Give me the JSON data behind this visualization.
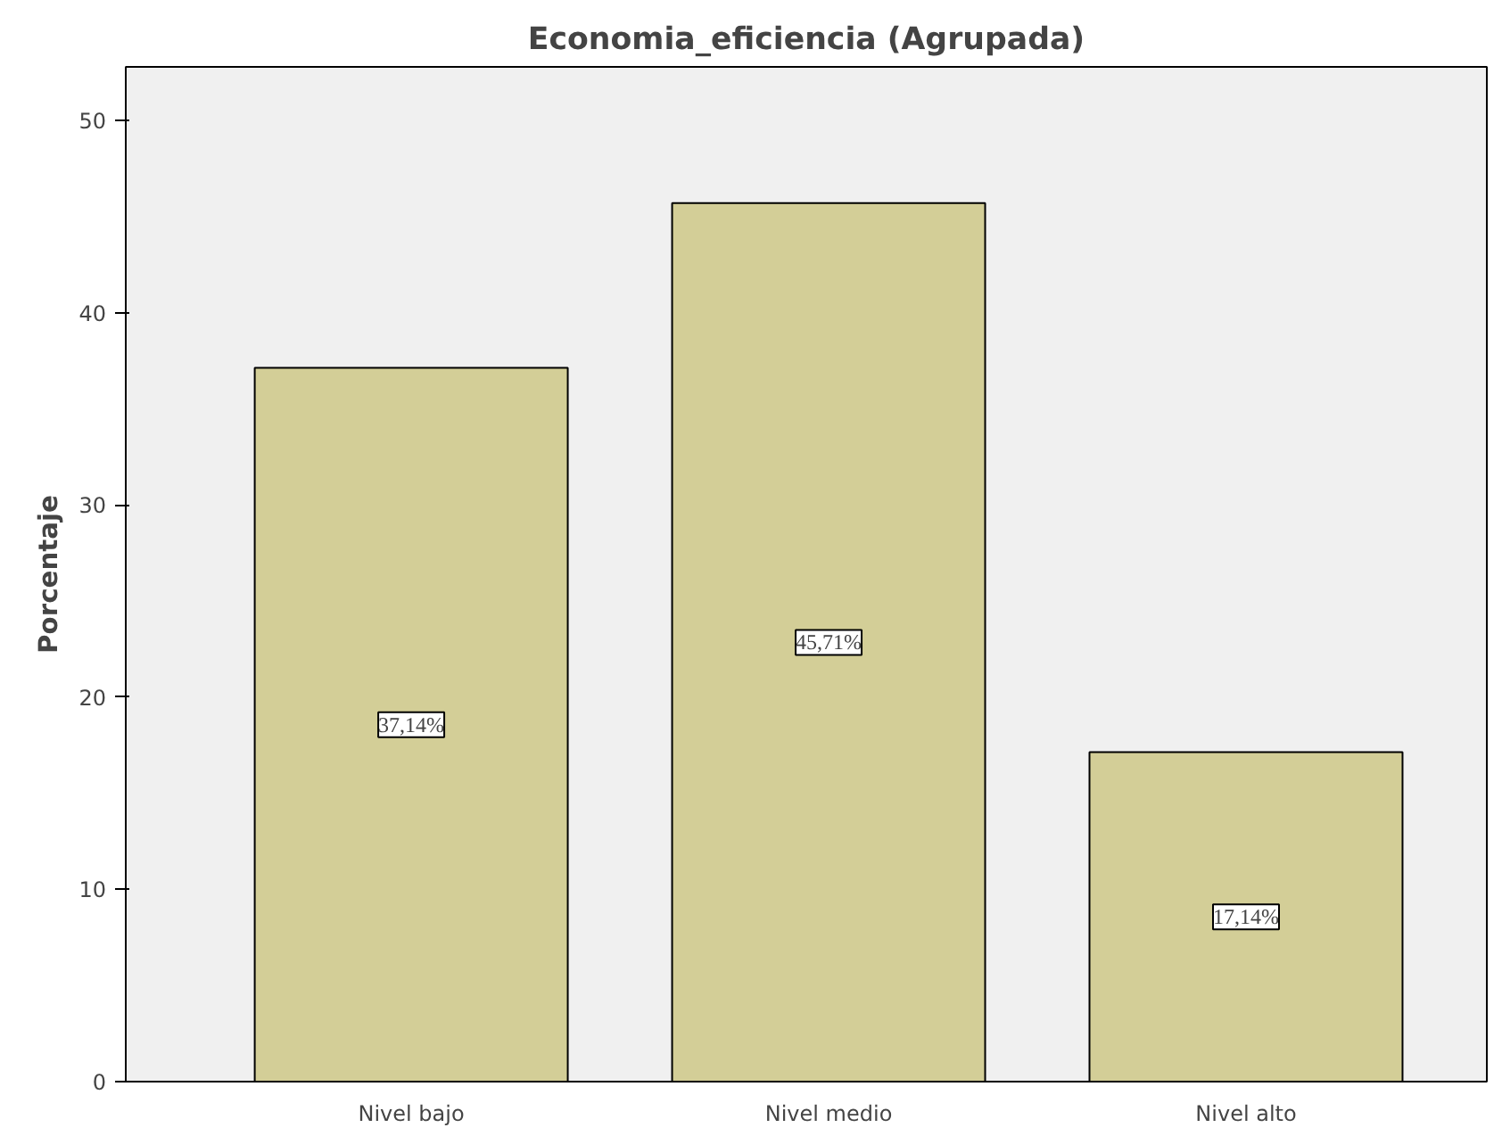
{
  "chart_data": {
    "type": "bar",
    "title": "Economia_eficiencia (Agrupada)",
    "ylabel": "Porcentaje",
    "categories": [
      "Nivel bajo",
      "Nivel medio",
      "Nivel alto"
    ],
    "values": [
      37.14,
      45.71,
      17.14
    ],
    "value_labels": [
      "37,14%",
      "45,71%",
      "17,14%"
    ],
    "color": "#d3ce97",
    "ylim": [
      0,
      52.8
    ],
    "yticks": [
      0,
      10,
      20,
      30,
      40,
      50
    ],
    "grid": false
  }
}
